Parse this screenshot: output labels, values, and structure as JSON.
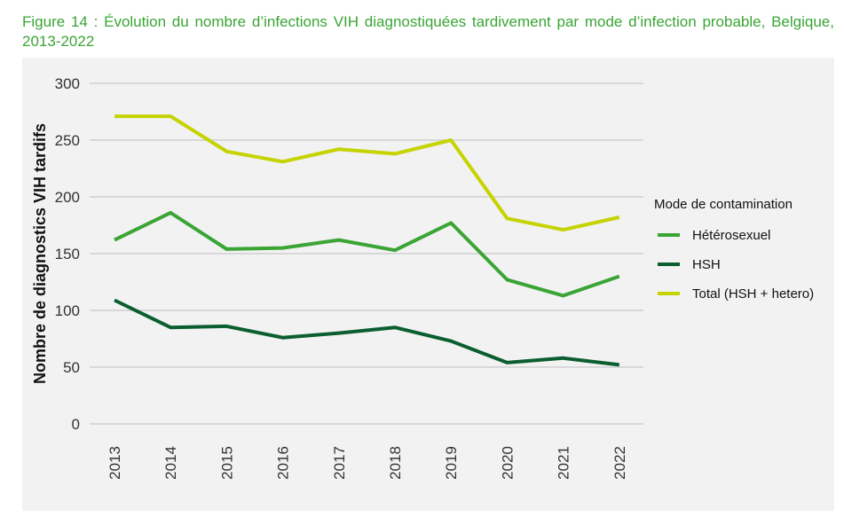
{
  "caption": "Figure 14 : Évolution du nombre d’infections VIH diagnostiquées tardivement par mode d’infection probable, Belgique, 2013-2022",
  "chart_data": {
    "type": "line",
    "title": "",
    "xlabel": "",
    "ylabel": "Nombre de diagnostics VIH tardifs",
    "x": [
      "2013",
      "2014",
      "2015",
      "2016",
      "2017",
      "2018",
      "2019",
      "2020",
      "2021",
      "2022"
    ],
    "ylim": [
      0,
      300
    ],
    "yticks": [
      0,
      50,
      100,
      150,
      200,
      250,
      300
    ],
    "grid": "horizontal",
    "legend": {
      "title": "Mode de contamination",
      "placement": "right"
    },
    "series": [
      {
        "name": "Hétérosexuel",
        "color": "#3aa535",
        "values": [
          162,
          186,
          154,
          155,
          162,
          153,
          177,
          127,
          113,
          130
        ]
      },
      {
        "name": "HSH",
        "color": "#0b5e2f",
        "values": [
          109,
          85,
          86,
          76,
          80,
          85,
          73,
          54,
          58,
          52
        ]
      },
      {
        "name": "Total (HSH + hetero)",
        "color": "#c5d300",
        "values": [
          271,
          271,
          240,
          231,
          242,
          238,
          250,
          181,
          171,
          182
        ]
      }
    ]
  }
}
